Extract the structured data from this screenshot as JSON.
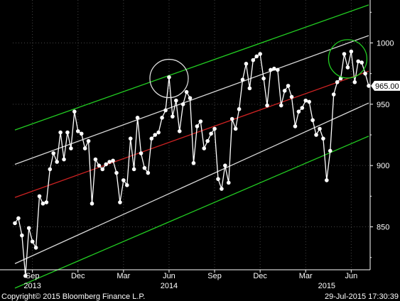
{
  "chart_data": {
    "type": "line",
    "title": "",
    "xlabel": "",
    "ylabel": "",
    "ylim": [
      815,
      1035
    ],
    "grid": false,
    "background": "#000000",
    "colors": {
      "series": "#ffffff",
      "middle_band": "#cc2222",
      "inner_bands": "#d8d8d8",
      "outer_bands": "#22cc22",
      "grid": "#444444",
      "last_value_box": "#ffffff"
    },
    "x_ticks": [
      {
        "label": "Sep",
        "index": 5
      },
      {
        "label": "Dec",
        "index": 18
      },
      {
        "label": "Mar",
        "index": 31
      },
      {
        "label": "Jun",
        "index": 44
      },
      {
        "label": "Sep",
        "index": 57
      },
      {
        "label": "Dec",
        "index": 70
      },
      {
        "label": "Mar",
        "index": 83
      },
      {
        "label": "Jun",
        "index": 96
      }
    ],
    "year_labels": [
      {
        "label": "2013",
        "index": 5
      },
      {
        "label": "2014",
        "index": 44
      },
      {
        "label": "2015",
        "index": 89
      }
    ],
    "y_ticks": [
      850,
      900,
      950,
      1000
    ],
    "last_value_label": "965.00",
    "series": [
      {
        "values": [
          853,
          857,
          843,
          810,
          849,
          838,
          833,
          875,
          869,
          870,
          897,
          910,
          903,
          927,
          905,
          927,
          914,
          944,
          928,
          926,
          914,
          920,
          869,
          905,
          900,
          897,
          901,
          903,
          904,
          894,
          870,
          888,
          884,
          922,
          897,
          939,
          910,
          898,
          894,
          922,
          925,
          927,
          939,
          945,
          972,
          940,
          953,
          928,
          950,
          960,
          955,
          902,
          932,
          936,
          914,
          920,
          926,
          930,
          889,
          881,
          900,
          886,
          938,
          930,
          946,
          970,
          983,
          963,
          986,
          989,
          991,
          971,
          949,
          978,
          979,
          978,
          949,
          961,
          965,
          956,
          932,
          944,
          947,
          953,
          952,
          937,
          925,
          930,
          922,
          888,
          912,
          958,
          968,
          971,
          991,
          980,
          993,
          968,
          985,
          984,
          975,
          965
        ]
      }
    ],
    "bands": [
      {
        "name": "outer_upper",
        "start": 929,
        "end": 1031
      },
      {
        "name": "inner_upper",
        "start": 901,
        "end": 1006
      },
      {
        "name": "middle",
        "start": 874,
        "end": 977
      },
      {
        "name": "inner_lower",
        "start": 820,
        "end": 951
      },
      {
        "name": "outer_lower",
        "start": 800,
        "end": 924
      }
    ],
    "annotation_circles": [
      {
        "index": 44,
        "value": 971,
        "color": "#dddddd"
      },
      {
        "index": 95,
        "value": 987,
        "color": "#22cc22"
      }
    ]
  },
  "footer": {
    "copyright": "Copyright© 2015 Bloomberg Finance L.P.",
    "timestamp": "29-Jul-2015 17:30:39"
  }
}
